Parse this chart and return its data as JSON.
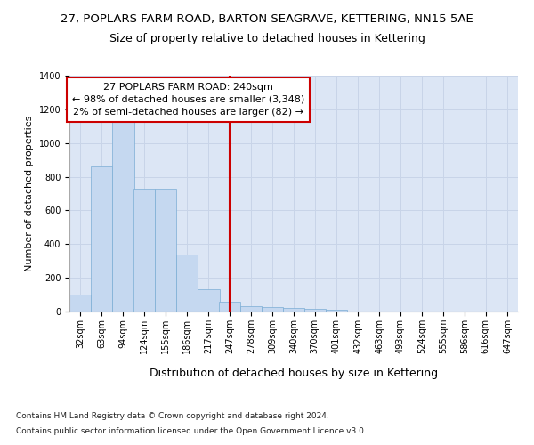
{
  "title": "27, POPLARS FARM ROAD, BARTON SEAGRAVE, KETTERING, NN15 5AE",
  "subtitle": "Size of property relative to detached houses in Kettering",
  "xlabel": "Distribution of detached houses by size in Kettering",
  "ylabel": "Number of detached properties",
  "bin_labels": [
    "32sqm",
    "63sqm",
    "94sqm",
    "124sqm",
    "155sqm",
    "186sqm",
    "217sqm",
    "247sqm",
    "278sqm",
    "309sqm",
    "340sqm",
    "370sqm",
    "401sqm",
    "432sqm",
    "463sqm",
    "493sqm",
    "524sqm",
    "555sqm",
    "586sqm",
    "616sqm",
    "647sqm"
  ],
  "bin_edges": [
    32,
    63,
    94,
    124,
    155,
    186,
    217,
    247,
    278,
    309,
    340,
    370,
    401,
    432,
    463,
    493,
    524,
    555,
    586,
    616,
    647
  ],
  "bar_heights": [
    100,
    860,
    1140,
    730,
    730,
    340,
    130,
    60,
    30,
    25,
    20,
    15,
    10,
    0,
    0,
    0,
    0,
    0,
    0,
    0,
    0
  ],
  "bar_color": "#c5d8f0",
  "bar_edgecolor": "#7aadd4",
  "vline_x": 247,
  "vline_color": "#cc0000",
  "annotation_line1": "27 POPLARS FARM ROAD: 240sqm",
  "annotation_line2": "← 98% of detached houses are smaller (3,348)",
  "annotation_line3": "2% of semi-detached houses are larger (82) →",
  "annotation_box_edgecolor": "#cc0000",
  "annotation_box_facecolor": "#ffffff",
  "ylim": [
    0,
    1400
  ],
  "yticks": [
    0,
    200,
    400,
    600,
    800,
    1000,
    1200,
    1400
  ],
  "grid_color": "#c8d4e8",
  "bg_color": "#dce6f5",
  "footer_line1": "Contains HM Land Registry data © Crown copyright and database right 2024.",
  "footer_line2": "Contains public sector information licensed under the Open Government Licence v3.0.",
  "title_fontsize": 9.5,
  "subtitle_fontsize": 9,
  "xlabel_fontsize": 9,
  "ylabel_fontsize": 8,
  "tick_fontsize": 7,
  "annotation_fontsize": 8,
  "footer_fontsize": 6.5
}
